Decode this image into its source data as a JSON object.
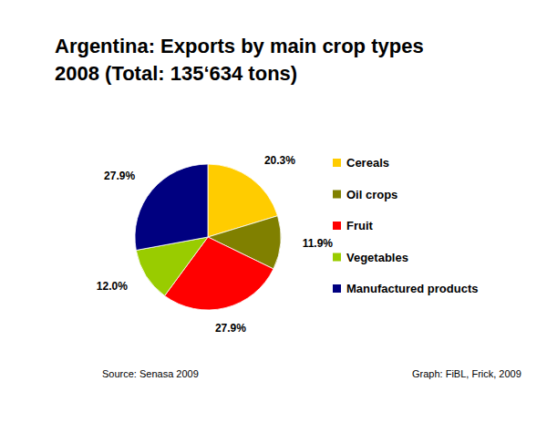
{
  "chart_data": {
    "type": "pie",
    "title": "Argentina: Exports by main crop types\n2008 (Total: 135‘634 tons)",
    "categories": [
      "Cereals",
      "Oil crops",
      "Fruit",
      "Vegetables",
      "Manufactured products"
    ],
    "values": [
      20.3,
      11.9,
      27.9,
      12.0,
      27.9
    ],
    "value_labels": [
      "20.3%",
      "11.9%",
      "27.9%",
      "12.0%",
      "27.9%"
    ],
    "colors": [
      "#ffcc00",
      "#808000",
      "#ff0000",
      "#99cc00",
      "#000080"
    ],
    "data_labels": true,
    "legend": "right",
    "annotations": [
      "Source: Senasa 2009",
      "Graph: FiBL, Frick, 2009"
    ]
  }
}
